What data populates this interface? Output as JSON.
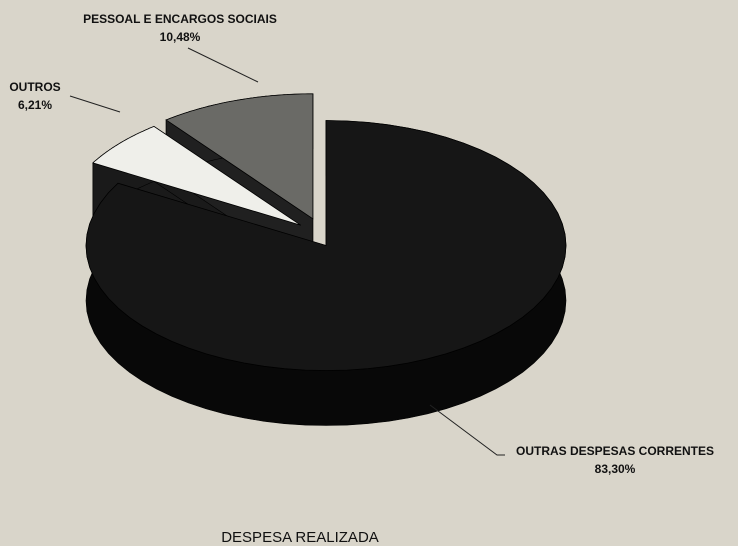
{
  "chart_data": {
    "type": "pie3d",
    "title": "DESPESA REALIZADA",
    "categories": [
      "OUTRAS DESPESAS CORRENTES",
      "OUTROS",
      "PESSOAL E ENCARGOS SOCIAIS"
    ],
    "values": [
      83.3,
      6.21,
      10.48
    ],
    "value_labels": [
      "83,30%",
      "6,21%",
      "10,48%"
    ],
    "colors": [
      "#161616",
      "#efefea",
      "#6a6a66"
    ]
  }
}
